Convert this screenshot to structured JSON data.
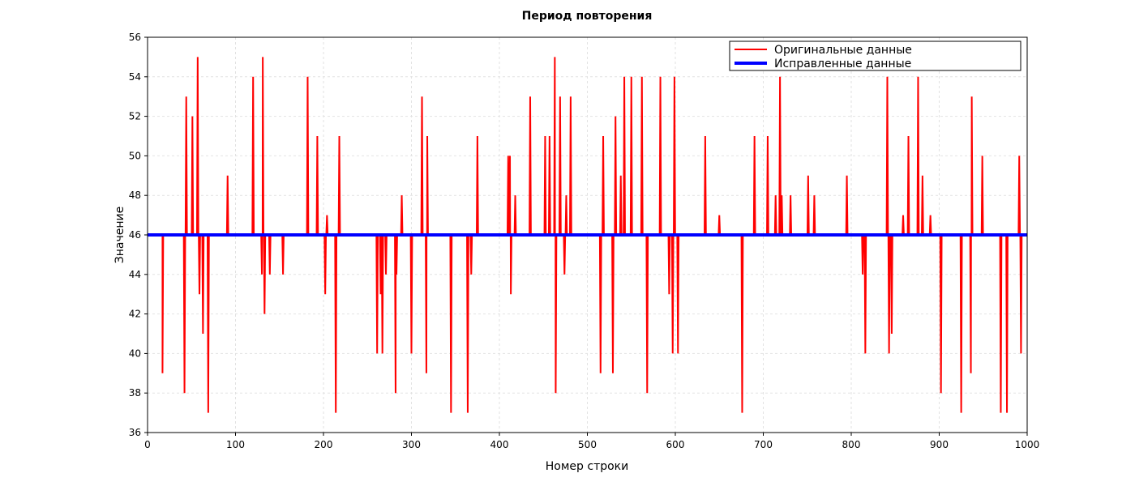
{
  "chart_data": {
    "type": "line",
    "title": "Период повторения",
    "xlabel": "Номер строки",
    "ylabel": "Значение",
    "xlim": [
      0,
      1000
    ],
    "ylim": [
      36,
      56
    ],
    "xticks": [
      0,
      100,
      200,
      300,
      400,
      500,
      600,
      700,
      800,
      900,
      1000
    ],
    "yticks": [
      36,
      38,
      40,
      42,
      44,
      46,
      48,
      50,
      52,
      54,
      56
    ],
    "grid": true,
    "legend_position": "top-right",
    "series": [
      {
        "name": "Оригинальные данные",
        "color": "#ff0000",
        "baseline": 46,
        "spikes": [
          [
            17,
            39
          ],
          [
            42,
            38
          ],
          [
            44,
            53
          ],
          [
            51,
            52
          ],
          [
            57,
            55
          ],
          [
            59,
            43
          ],
          [
            63,
            41
          ],
          [
            69,
            37
          ],
          [
            91,
            49
          ],
          [
            120,
            54
          ],
          [
            130,
            44
          ],
          [
            131,
            55
          ],
          [
            133,
            42
          ],
          [
            139,
            44
          ],
          [
            154,
            44
          ],
          [
            182,
            54
          ],
          [
            193,
            51
          ],
          [
            202,
            43
          ],
          [
            204,
            47
          ],
          [
            214,
            37
          ],
          [
            218,
            51
          ],
          [
            261,
            40
          ],
          [
            265,
            43
          ],
          [
            267,
            40
          ],
          [
            271,
            44
          ],
          [
            282,
            38
          ],
          [
            283,
            44
          ],
          [
            289,
            48
          ],
          [
            300,
            40
          ],
          [
            312,
            53
          ],
          [
            317,
            39
          ],
          [
            318,
            51
          ],
          [
            345,
            37
          ],
          [
            364,
            37
          ],
          [
            368,
            44
          ],
          [
            375,
            51
          ],
          [
            410,
            50
          ],
          [
            412,
            50
          ],
          [
            413,
            43
          ],
          [
            418,
            48
          ],
          [
            435,
            53
          ],
          [
            452,
            51
          ],
          [
            457,
            51
          ],
          [
            463,
            55
          ],
          [
            464,
            38
          ],
          [
            469,
            53
          ],
          [
            474,
            44
          ],
          [
            476,
            48
          ],
          [
            481,
            53
          ],
          [
            515,
            39
          ],
          [
            518,
            51
          ],
          [
            529,
            39
          ],
          [
            532,
            52
          ],
          [
            538,
            49
          ],
          [
            542,
            54
          ],
          [
            550,
            54
          ],
          [
            562,
            54
          ],
          [
            568,
            38
          ],
          [
            583,
            54
          ],
          [
            593,
            43
          ],
          [
            597,
            40
          ],
          [
            599,
            54
          ],
          [
            603,
            40
          ],
          [
            634,
            51
          ],
          [
            650,
            47
          ],
          [
            676,
            37
          ],
          [
            690,
            51
          ],
          [
            705,
            51
          ],
          [
            714,
            48
          ],
          [
            719,
            54
          ],
          [
            721,
            48
          ],
          [
            731,
            48
          ],
          [
            751,
            49
          ],
          [
            758,
            48
          ],
          [
            795,
            49
          ],
          [
            813,
            44
          ],
          [
            816,
            40
          ],
          [
            841,
            54
          ],
          [
            843,
            40
          ],
          [
            846,
            41
          ],
          [
            859,
            47
          ],
          [
            865,
            51
          ],
          [
            876,
            54
          ],
          [
            881,
            49
          ],
          [
            890,
            47
          ],
          [
            902,
            38
          ],
          [
            925,
            37
          ],
          [
            936,
            39
          ],
          [
            937,
            53
          ],
          [
            949,
            50
          ],
          [
            970,
            37
          ],
          [
            977,
            37
          ],
          [
            991,
            50
          ],
          [
            993,
            40
          ]
        ]
      },
      {
        "name": "Исправленные данные",
        "color": "#0000ff",
        "x": [
          0,
          1000
        ],
        "values": [
          46,
          46
        ]
      }
    ]
  }
}
